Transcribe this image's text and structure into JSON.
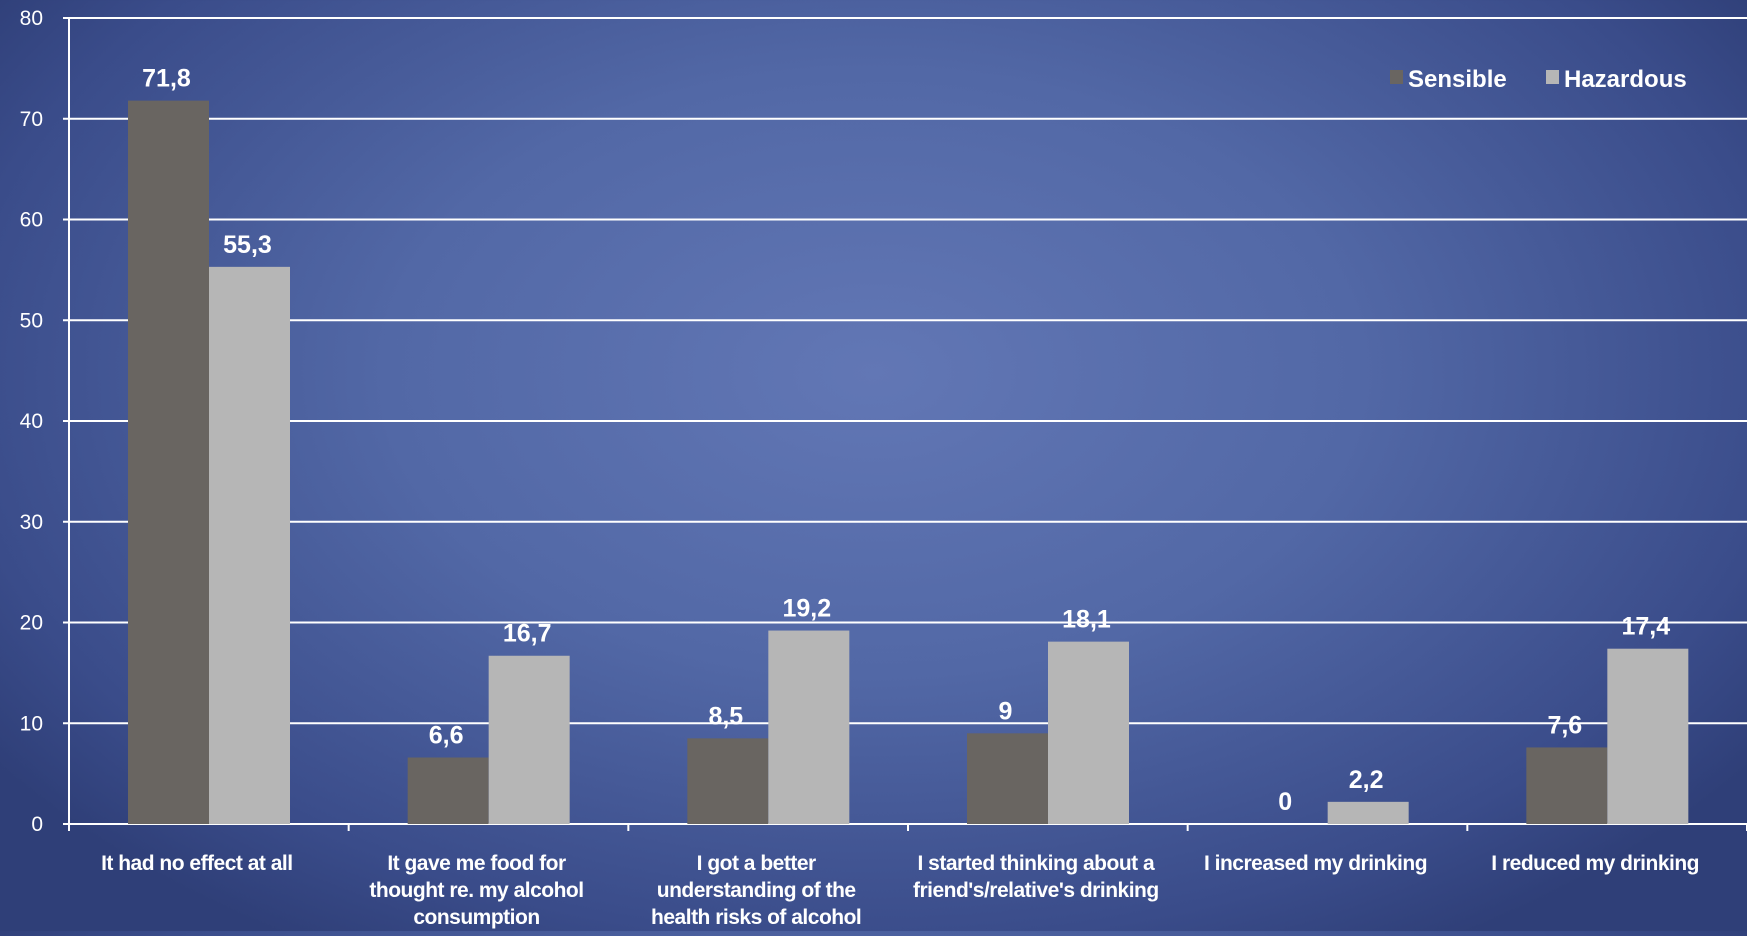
{
  "chart_data": {
    "type": "bar",
    "categories": [
      "It had no effect at all",
      "It gave me food for thought re. my alcohol consumption",
      "I got a better understanding of the health risks of alcohol",
      "I started thinking about a friend's/relative's drinking",
      "I increased my drinking",
      "I reduced my drinking"
    ],
    "category_lines": [
      [
        "It had no effect at all"
      ],
      [
        "It gave me food for",
        "thought re. my alcohol",
        "consumption"
      ],
      [
        "I got a better",
        "understanding of the",
        "health risks of alcohol"
      ],
      [
        "I started thinking about a",
        "friend's/relative's drinking"
      ],
      [
        "I increased my drinking"
      ],
      [
        "I reduced my drinking"
      ]
    ],
    "series": [
      {
        "name": "Sensible",
        "color": "#696561",
        "values": [
          71.8,
          6.6,
          8.5,
          9,
          0,
          7.6
        ],
        "labels": [
          "71,8",
          "6,6",
          "8,5",
          "9",
          "0",
          "7,6"
        ]
      },
      {
        "name": "Hazardous",
        "color": "#b6b6b6",
        "values": [
          55.3,
          16.7,
          19.2,
          18.1,
          2.2,
          17.4
        ],
        "labels": [
          "55,3",
          "16,7",
          "19,2",
          "18,1",
          "2,2",
          "17,4"
        ]
      }
    ],
    "ylim": [
      0,
      80
    ],
    "yticks": [
      0,
      10,
      20,
      30,
      40,
      50,
      60,
      70,
      80
    ],
    "grid": true,
    "legend_position": "top-right",
    "title": "",
    "xlabel": "",
    "ylabel": ""
  }
}
